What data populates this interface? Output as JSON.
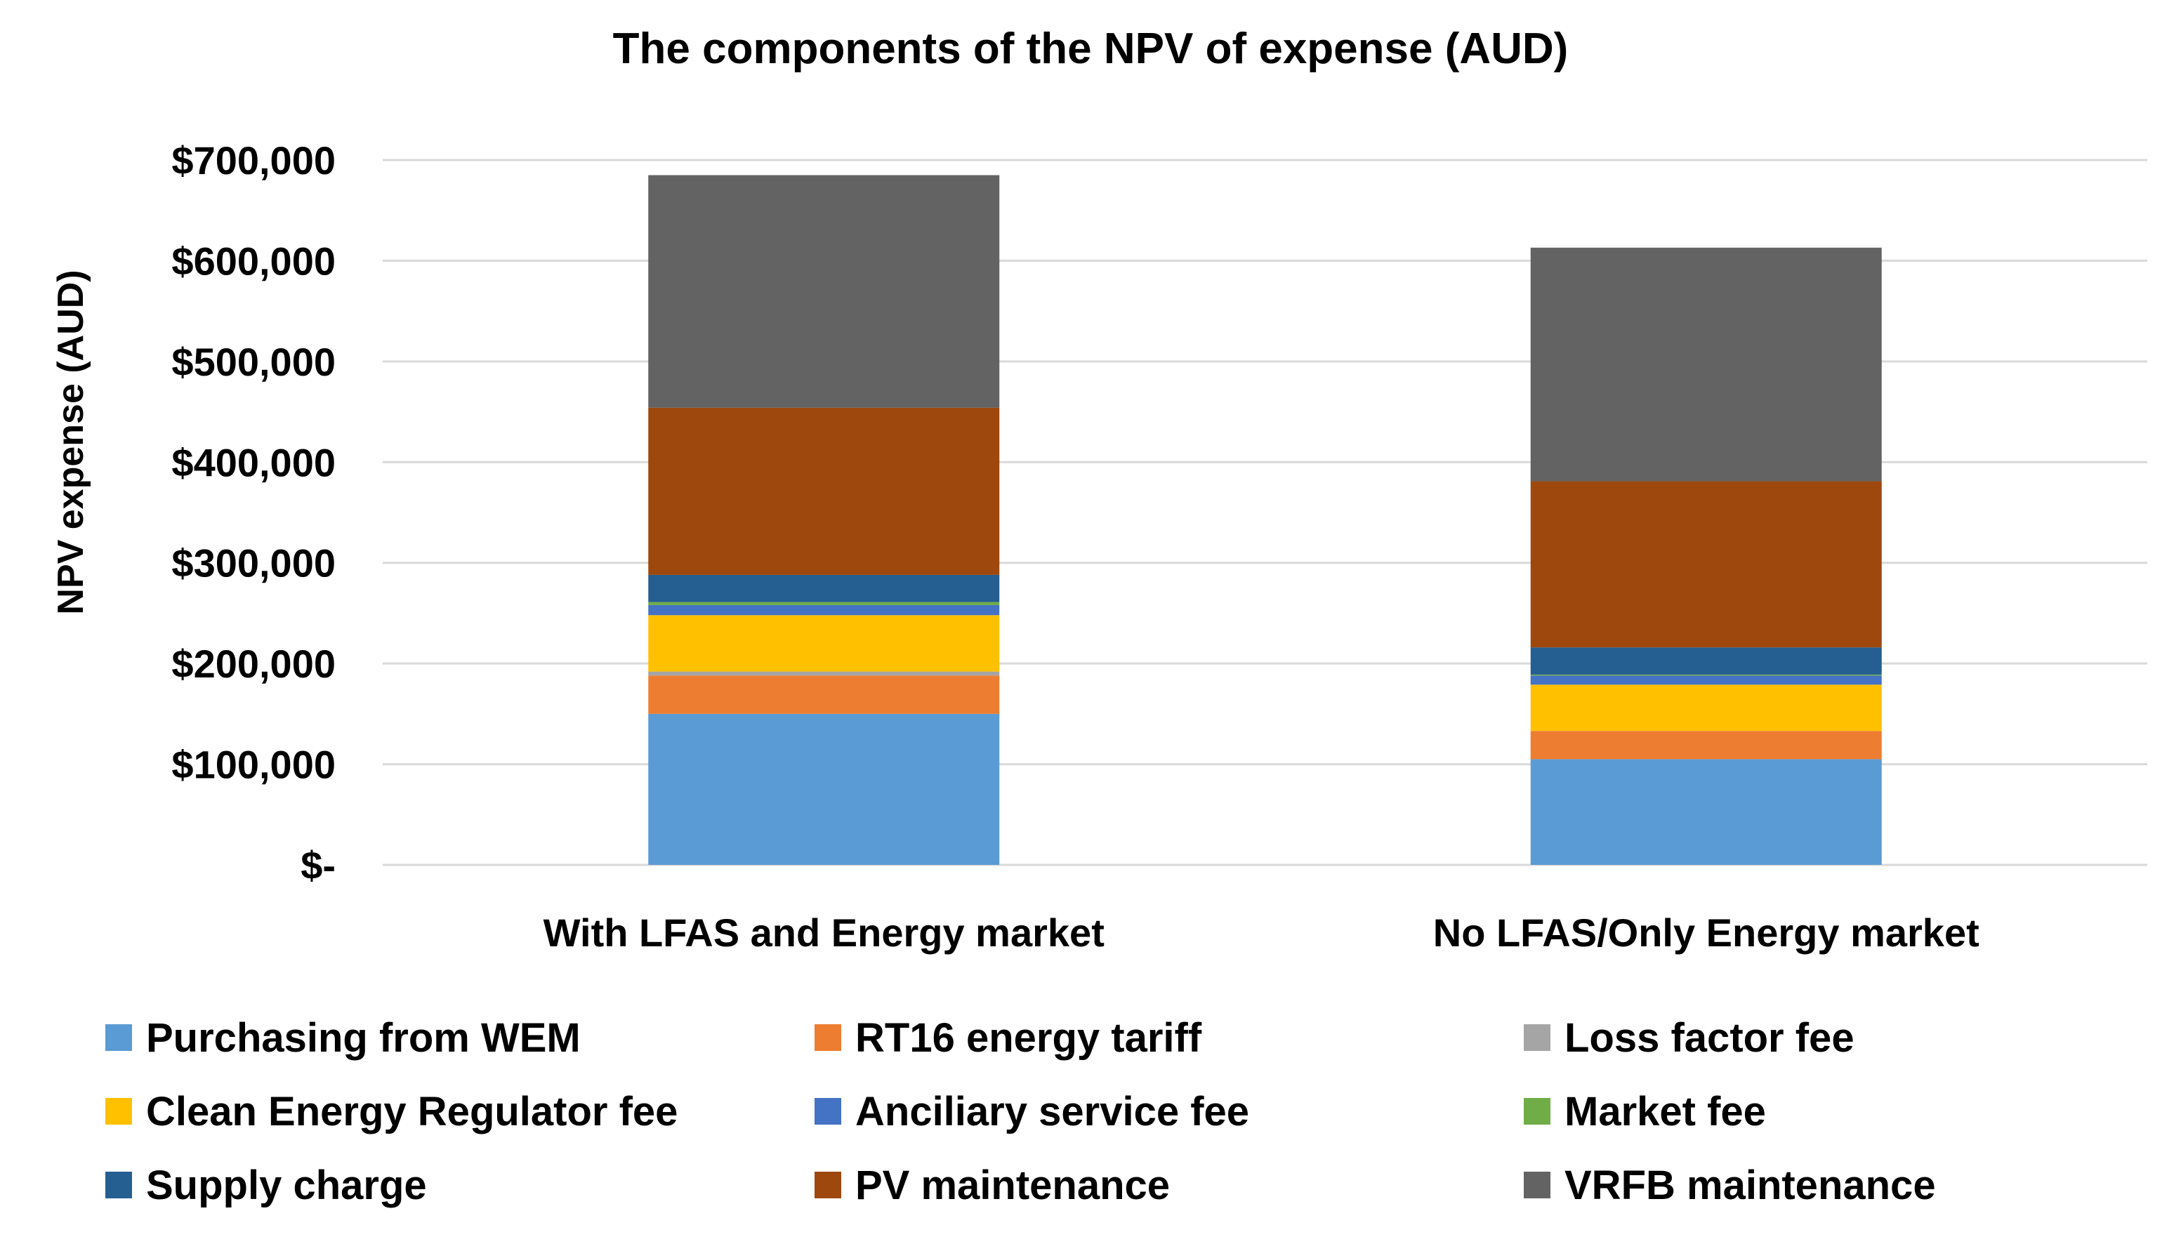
{
  "chart_data": {
    "type": "bar",
    "stacked": true,
    "title": "The components of the NPV of expense (AUD)",
    "xlabel": "",
    "ylabel": "NPV expense (AUD)",
    "ylim": [
      0,
      700000
    ],
    "yticks": [
      0,
      100000,
      200000,
      300000,
      400000,
      500000,
      600000,
      700000
    ],
    "ytick_labels": [
      "$-",
      "$100,000",
      "$200,000",
      "$300,000",
      "$400,000",
      "$500,000",
      "$600,000",
      "$700,000"
    ],
    "grid": true,
    "legend_position": "bottom",
    "categories": [
      "With LFAS and Energy market",
      "No LFAS/Only Energy market"
    ],
    "series": [
      {
        "name": "Purchasing from WEM",
        "color": "#5B9BD5",
        "values": [
          150000,
          105000
        ]
      },
      {
        "name": "RT16 energy tariff",
        "color": "#ED7D31",
        "values": [
          38000,
          28000
        ]
      },
      {
        "name": "Loss factor fee",
        "color": "#A5A5A5",
        "values": [
          4000,
          0
        ]
      },
      {
        "name": "Clean Energy Regulator fee",
        "color": "#FFC000",
        "values": [
          56000,
          46000
        ]
      },
      {
        "name": "Anciliary service fee",
        "color": "#4472C4",
        "values": [
          10000,
          9000
        ]
      },
      {
        "name": "Market fee",
        "color": "#70AD47",
        "values": [
          3000,
          1000
        ]
      },
      {
        "name": "Supply charge",
        "color": "#255E91",
        "values": [
          27000,
          27000
        ]
      },
      {
        "name": "PV maintenance",
        "color": "#9E480E",
        "values": [
          166000,
          165000
        ]
      },
      {
        "name": "VRFB maintenance",
        "color": "#636363",
        "values": [
          231000,
          232000
        ]
      }
    ]
  }
}
